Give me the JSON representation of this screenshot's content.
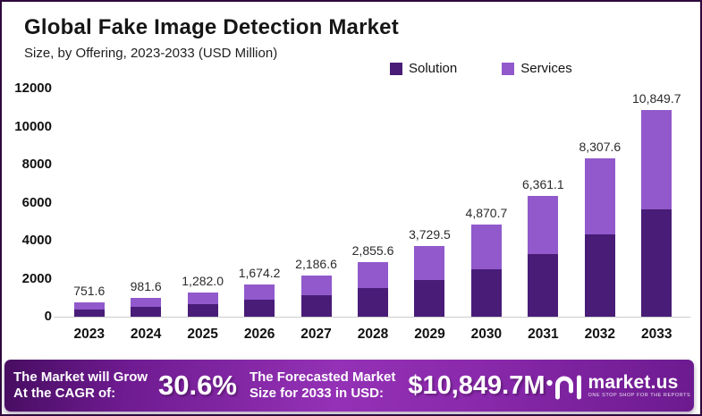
{
  "header": {
    "title": "Global Fake Image Detection Market",
    "subtitle": "Size, by Offering, 2023-2033 (USD Million)"
  },
  "legend": {
    "items": [
      {
        "label": "Solution",
        "color": "#481c77"
      },
      {
        "label": "Services",
        "color": "#9159cb"
      }
    ]
  },
  "chart_data": {
    "type": "bar",
    "stacked": true,
    "title": "Global Fake Image Detection Market",
    "subtitle": "Size, by Offering, 2023-2033 (USD Million)",
    "unit": "USD Million",
    "categories": [
      "2023",
      "2024",
      "2025",
      "2026",
      "2027",
      "2028",
      "2029",
      "2030",
      "2031",
      "2032",
      "2033"
    ],
    "series": [
      {
        "name": "Solution",
        "color": "#481c77",
        "values": [
          355,
          510,
          670,
          885,
          1140,
          1530,
          1950,
          2490,
          3290,
          4315,
          5640
        ]
      },
      {
        "name": "Services",
        "color": "#9159cb",
        "values": [
          396.6,
          471.6,
          612.0,
          789.2,
          1046.6,
          1325.6,
          1779.5,
          2380.7,
          3071.1,
          3992.6,
          5209.7
        ]
      }
    ],
    "totals": [
      751.6,
      981.6,
      1282.0,
      1674.2,
      2186.6,
      2855.6,
      3729.5,
      4870.7,
      6361.1,
      8307.6,
      10849.7
    ],
    "total_labels": [
      "751.6",
      "981.6",
      "1,282.0",
      "1,674.2",
      "2,186.6",
      "2,855.6",
      "3,729.5",
      "4,870.7",
      "6,361.1",
      "8,307.6",
      "10,849.7"
    ],
    "ylim": [
      0,
      12000
    ],
    "yticks": [
      0,
      2000,
      4000,
      6000,
      8000,
      10000,
      12000
    ],
    "grid": false,
    "legend_position": "top-right"
  },
  "footer": {
    "cagr_label_line1": "The Market will Grow",
    "cagr_label_line2": "At the CAGR of:",
    "cagr_value": "30.6%",
    "forecast_label_line1": "The Forecasted Market",
    "forecast_label_line2": "Size for 2033 in USD:",
    "forecast_value": "$10,849.7M",
    "brand": "market.us",
    "brand_tagline": "ONE STOP SHOP FOR THE REPORTS"
  },
  "colors": {
    "solution": "#481c77",
    "services": "#9159cb",
    "axis_text": "#111111",
    "baseline": "#cccccc",
    "border": "#2e0a3e"
  }
}
